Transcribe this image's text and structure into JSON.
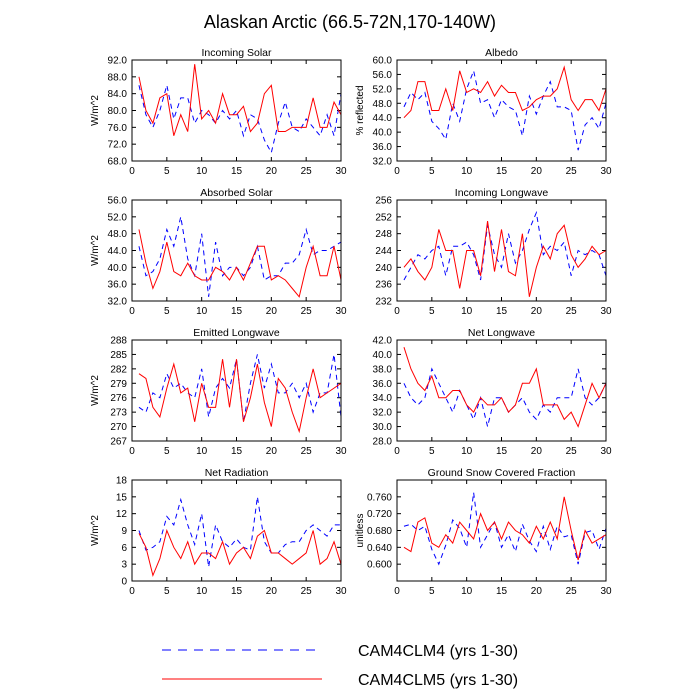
{
  "title": "Alaskan Arctic (66.5-72N,170-140W)",
  "legend": {
    "items": [
      {
        "label": "CAM4CLM4 (yrs 1-30)",
        "color": "#0000ff",
        "dash": true
      },
      {
        "label": "CAM4CLM5 (yrs 1-30)",
        "color": "#ff0000",
        "dash": false
      }
    ]
  },
  "chart_data": [
    {
      "type": "line",
      "title": "Incoming Solar",
      "ylabel": "W/m^2",
      "xlabel": "",
      "xlim": [
        0,
        30
      ],
      "ylim": [
        68,
        92
      ],
      "xticks": [
        "0",
        "5",
        "10",
        "15",
        "20",
        "25",
        "30"
      ],
      "yticks": [
        "68.0",
        "72.0",
        "76.0",
        "80.0",
        "84.0",
        "88.0",
        "92.0"
      ],
      "x": [
        1,
        2,
        3,
        4,
        5,
        6,
        7,
        8,
        9,
        10,
        11,
        12,
        13,
        14,
        15,
        16,
        17,
        18,
        19,
        20,
        21,
        22,
        23,
        24,
        25,
        26,
        27,
        28,
        29,
        30
      ],
      "series": [
        {
          "name": "CAM4CLM4 (yrs 1-30)",
          "values": [
            86,
            79,
            76,
            80,
            86,
            78,
            83,
            83,
            77,
            80,
            79,
            77,
            80,
            78,
            80,
            74,
            79,
            78,
            73,
            70,
            77,
            82,
            76,
            75,
            78,
            76,
            74,
            79,
            74,
            84
          ]
        },
        {
          "name": "CAM4CLM5 (yrs 1-30)",
          "values": [
            88,
            80,
            77,
            83,
            84,
            74,
            79,
            75,
            91,
            78,
            80,
            77,
            84,
            79,
            79,
            81,
            75,
            77,
            84,
            86,
            75,
            75,
            76,
            76,
            76,
            83,
            76,
            76,
            82,
            79
          ]
        }
      ]
    },
    {
      "type": "line",
      "title": "Albedo",
      "ylabel": "% reflected",
      "xlabel": "",
      "xlim": [
        0,
        30
      ],
      "ylim": [
        32,
        60
      ],
      "xticks": [
        "0",
        "5",
        "10",
        "15",
        "20",
        "25",
        "30"
      ],
      "yticks": [
        "32.0",
        "36.0",
        "40.0",
        "44.0",
        "48.0",
        "52.0",
        "56.0",
        "60.0"
      ],
      "x": [
        1,
        2,
        3,
        4,
        5,
        6,
        7,
        8,
        9,
        10,
        11,
        12,
        13,
        14,
        15,
        16,
        17,
        18,
        19,
        20,
        21,
        22,
        23,
        24,
        25,
        26,
        27,
        28,
        29,
        30
      ],
      "series": [
        {
          "name": "CAM4CLM4 (yrs 1-30)",
          "values": [
            47,
            51,
            49,
            51,
            43,
            41,
            38,
            48,
            43,
            52,
            57,
            48,
            49,
            44,
            49,
            47,
            46,
            39,
            50,
            45,
            50,
            54,
            47,
            47,
            46,
            35,
            42,
            44,
            41,
            48
          ]
        },
        {
          "name": "CAM4CLM5 (yrs 1-30)",
          "values": [
            44,
            46,
            54,
            54,
            46,
            46,
            52,
            46,
            57,
            51,
            52,
            51,
            54,
            50,
            53,
            51,
            51,
            46,
            47,
            49,
            50,
            50,
            52,
            58,
            49,
            46,
            49,
            49,
            46,
            52
          ]
        }
      ]
    },
    {
      "type": "line",
      "title": "Absorbed Solar",
      "ylabel": "W/m^2",
      "xlabel": "",
      "xlim": [
        0,
        30
      ],
      "ylim": [
        32,
        56
      ],
      "xticks": [
        "0",
        "5",
        "10",
        "15",
        "20",
        "25",
        "30"
      ],
      "yticks": [
        "32.0",
        "36.0",
        "40.0",
        "44.0",
        "48.0",
        "52.0",
        "56.0"
      ],
      "x": [
        1,
        2,
        3,
        4,
        5,
        6,
        7,
        8,
        9,
        10,
        11,
        12,
        13,
        14,
        15,
        16,
        17,
        18,
        19,
        20,
        21,
        22,
        23,
        24,
        25,
        26,
        27,
        28,
        29,
        30
      ],
      "series": [
        {
          "name": "CAM4CLM4 (yrs 1-30)",
          "values": [
            45,
            38,
            39,
            42,
            49,
            45,
            52,
            42,
            38,
            48,
            33,
            46,
            38,
            40,
            40,
            38,
            40,
            45,
            37,
            38,
            38,
            41,
            41,
            43,
            49,
            43,
            44,
            44,
            45,
            46
          ]
        },
        {
          "name": "CAM4CLM5 (yrs 1-30)",
          "values": [
            49,
            41,
            35,
            39,
            46,
            39,
            38,
            41,
            38,
            37,
            37,
            40,
            39,
            37,
            40,
            37,
            41,
            45,
            45,
            37,
            38,
            37,
            35,
            33,
            40,
            45,
            38,
            38,
            45,
            37
          ]
        }
      ]
    },
    {
      "type": "line",
      "title": "Incoming Longwave",
      "ylabel": "",
      "xlabel": "",
      "xlim": [
        0,
        30
      ],
      "ylim": [
        232,
        256
      ],
      "xticks": [
        "0",
        "5",
        "10",
        "15",
        "20",
        "25",
        "30"
      ],
      "yticks": [
        "232",
        "236",
        "240",
        "244",
        "248",
        "252",
        "256"
      ],
      "x": [
        1,
        2,
        3,
        4,
        5,
        6,
        7,
        8,
        9,
        10,
        11,
        12,
        13,
        14,
        15,
        16,
        17,
        18,
        19,
        20,
        21,
        22,
        23,
        24,
        25,
        26,
        27,
        28,
        29,
        30
      ],
      "series": [
        {
          "name": "CAM4CLM4 (yrs 1-30)",
          "values": [
            237,
            240,
            243,
            242,
            244,
            245,
            238,
            245,
            245,
            246,
            243,
            237,
            250,
            243,
            240,
            248,
            241,
            244,
            249,
            253,
            243,
            245,
            244,
            246,
            238,
            244,
            243,
            244,
            243,
            238
          ]
        },
        {
          "name": "CAM4CLM5 (yrs 1-30)",
          "values": [
            240,
            242,
            239,
            237,
            240,
            249,
            244,
            244,
            235,
            244,
            244,
            238,
            251,
            239,
            249,
            239,
            238,
            248,
            233,
            240,
            245,
            242,
            248,
            250,
            243,
            240,
            242,
            245,
            243,
            244
          ]
        }
      ]
    },
    {
      "type": "line",
      "title": "Emitted Longwave",
      "ylabel": "W/m^2",
      "xlabel": "",
      "xlim": [
        0,
        30
      ],
      "ylim": [
        267,
        288
      ],
      "xticks": [
        "0",
        "5",
        "10",
        "15",
        "20",
        "25",
        "30"
      ],
      "yticks": [
        "267",
        "270",
        "273",
        "276",
        "279",
        "282",
        "285",
        "288"
      ],
      "x": [
        1,
        2,
        3,
        4,
        5,
        6,
        7,
        8,
        9,
        10,
        11,
        12,
        13,
        14,
        15,
        16,
        17,
        18,
        19,
        20,
        21,
        22,
        23,
        24,
        25,
        26,
        27,
        28,
        29,
        30
      ],
      "series": [
        {
          "name": "CAM4CLM4 (yrs 1-30)",
          "values": [
            274,
            273,
            277,
            276,
            281,
            278,
            279,
            277,
            276,
            282,
            272,
            278,
            280,
            278,
            284,
            271,
            279,
            285,
            278,
            283,
            277,
            277,
            279,
            276,
            279,
            273,
            277,
            277,
            285,
            272
          ]
        },
        {
          "name": "CAM4CLM5 (yrs 1-30)",
          "values": [
            281,
            280,
            274,
            272,
            278,
            283,
            277,
            278,
            271,
            279,
            274,
            274,
            284,
            274,
            284,
            271,
            276,
            283,
            275,
            270,
            280,
            278,
            273,
            269,
            276,
            282,
            276,
            277,
            278,
            279
          ]
        }
      ]
    },
    {
      "type": "line",
      "title": "Net Longwave",
      "ylabel": "",
      "xlabel": "",
      "xlim": [
        0,
        30
      ],
      "ylim": [
        28,
        42
      ],
      "xticks": [
        "0",
        "5",
        "10",
        "15",
        "20",
        "25",
        "30"
      ],
      "yticks": [
        "28.0",
        "30.0",
        "32.0",
        "34.0",
        "36.0",
        "38.0",
        "40.0",
        "42.0"
      ],
      "x": [
        1,
        2,
        3,
        4,
        5,
        6,
        7,
        8,
        9,
        10,
        11,
        12,
        13,
        14,
        15,
        16,
        17,
        18,
        19,
        20,
        21,
        22,
        23,
        24,
        25,
        26,
        27,
        28,
        29,
        30
      ],
      "series": [
        {
          "name": "CAM4CLM4 (yrs 1-30)",
          "values": [
            36,
            34,
            33,
            34,
            38,
            36,
            34,
            32,
            35,
            33,
            31,
            34,
            30,
            34,
            34,
            32,
            33,
            34,
            32,
            31,
            33,
            32,
            34,
            34,
            34,
            38,
            34,
            33,
            34,
            36
          ]
        },
        {
          "name": "CAM4CLM5 (yrs 1-30)",
          "values": [
            41,
            38,
            36,
            35,
            37,
            34,
            34,
            35,
            35,
            33,
            32,
            34,
            33,
            33,
            34,
            32,
            33,
            36,
            36,
            38,
            33,
            33,
            33,
            31,
            32,
            30,
            33,
            36,
            34,
            36
          ]
        }
      ]
    },
    {
      "type": "line",
      "title": "Net Radiation",
      "ylabel": "W/m^2",
      "xlabel": "",
      "xlim": [
        0,
        30
      ],
      "ylim": [
        0,
        18
      ],
      "xticks": [
        "0",
        "5",
        "10",
        "15",
        "20",
        "25",
        "30"
      ],
      "yticks": [
        "0",
        "3",
        "6",
        "9",
        "12",
        "15",
        "18"
      ],
      "x": [
        1,
        2,
        3,
        4,
        5,
        6,
        7,
        8,
        9,
        10,
        11,
        12,
        13,
        14,
        15,
        16,
        17,
        18,
        19,
        20,
        21,
        22,
        23,
        24,
        25,
        26,
        27,
        28,
        29,
        30
      ],
      "series": [
        {
          "name": "CAM4CLM4 (yrs 1-30)",
          "values": [
            9,
            5.5,
            6,
            7,
            11.5,
            10,
            14.5,
            10,
            6.5,
            12,
            2.5,
            10,
            7,
            6,
            7.5,
            6,
            5.5,
            15,
            7,
            5,
            5,
            6.5,
            7,
            7,
            9,
            10,
            9,
            8,
            10,
            10
          ]
        },
        {
          "name": "CAM4CLM5 (yrs 1-30)",
          "values": [
            8.5,
            6,
            1,
            4,
            9,
            6,
            4,
            7,
            3,
            5,
            5,
            4,
            7,
            3,
            5,
            6,
            4,
            8,
            9,
            5,
            5,
            4,
            3,
            4,
            5,
            9,
            3,
            4,
            7,
            3
          ]
        }
      ]
    },
    {
      "type": "line",
      "title": "Ground Snow Covered Fraction",
      "ylabel": "unitless",
      "xlabel": "",
      "xlim": [
        0,
        30
      ],
      "ylim": [
        0.56,
        0.8
      ],
      "xticks": [
        "0",
        "5",
        "10",
        "15",
        "20",
        "25",
        "30"
      ],
      "yticks": [
        "0.600",
        "0.640",
        "0.680",
        "0.720",
        "0.760"
      ],
      "x": [
        1,
        2,
        3,
        4,
        5,
        6,
        7,
        8,
        9,
        10,
        11,
        12,
        13,
        14,
        15,
        16,
        17,
        18,
        19,
        20,
        21,
        22,
        23,
        24,
        25,
        26,
        27,
        28,
        29,
        30
      ],
      "series": [
        {
          "name": "CAM4CLM4 (yrs 1-30)",
          "values": [
            0.69,
            0.695,
            0.68,
            0.69,
            0.635,
            0.6,
            0.645,
            0.705,
            0.685,
            0.64,
            0.77,
            0.64,
            0.67,
            0.7,
            0.64,
            0.67,
            0.63,
            0.695,
            0.655,
            0.63,
            0.69,
            0.635,
            0.69,
            0.665,
            0.67,
            0.6,
            0.675,
            0.68,
            0.635,
            0.685
          ]
        },
        {
          "name": "CAM4CLM5 (yrs 1-30)",
          "values": [
            0.64,
            0.63,
            0.7,
            0.71,
            0.65,
            0.64,
            0.67,
            0.65,
            0.7,
            0.68,
            0.66,
            0.72,
            0.68,
            0.7,
            0.66,
            0.7,
            0.68,
            0.67,
            0.65,
            0.69,
            0.66,
            0.7,
            0.66,
            0.76,
            0.68,
            0.61,
            0.68,
            0.65,
            0.66,
            0.67
          ]
        }
      ]
    }
  ]
}
